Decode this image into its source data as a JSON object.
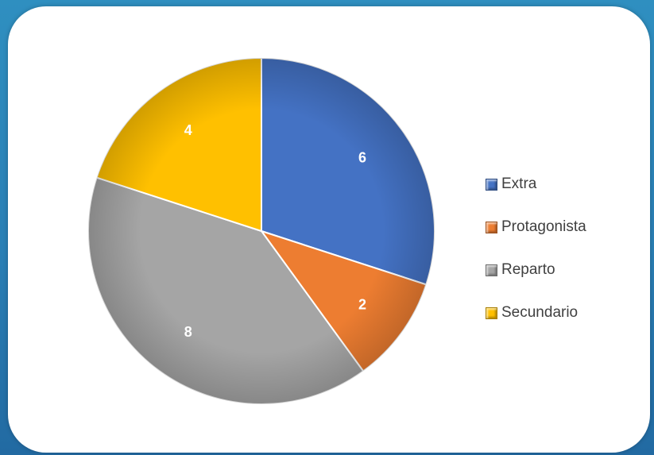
{
  "chart_data": {
    "type": "pie",
    "slices": [
      {
        "label": "Extra",
        "value": 6,
        "color": "#4472C4"
      },
      {
        "label": "Protagonista",
        "value": 2,
        "color": "#ED7D31"
      },
      {
        "label": "Reparto",
        "value": 8,
        "color": "#A5A5A5"
      },
      {
        "label": "Secundario",
        "value": 4,
        "color": "#FFC000"
      }
    ],
    "legend_position": "right",
    "data_labels": true
  }
}
